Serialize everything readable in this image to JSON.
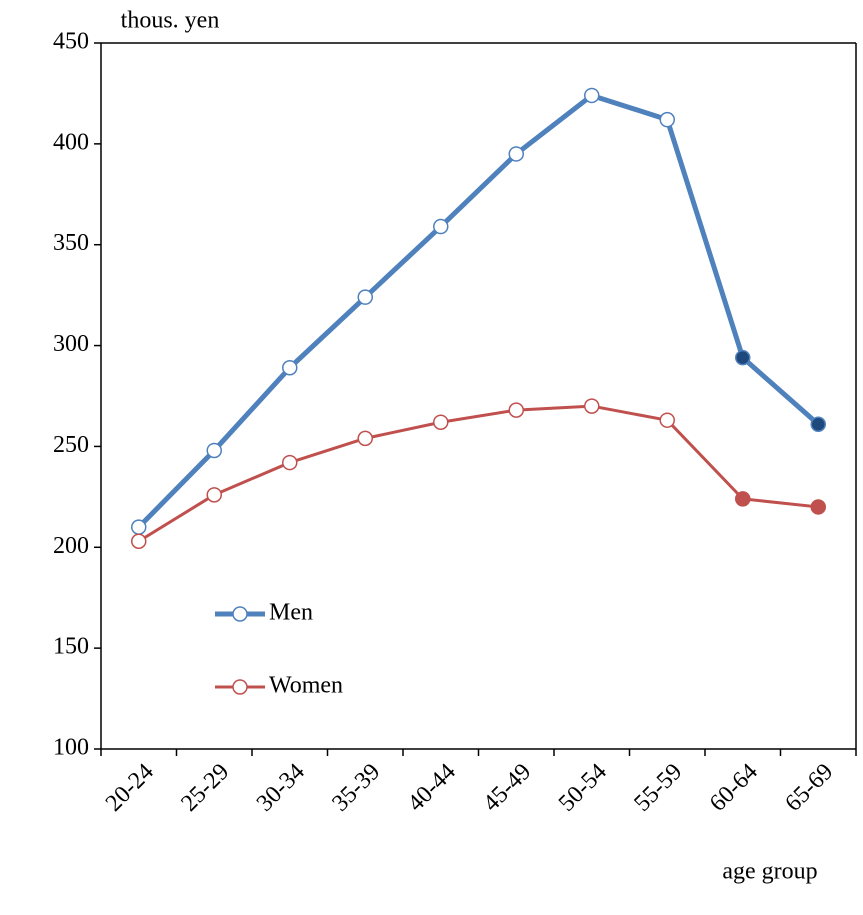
{
  "chart_data": {
    "type": "line",
    "y_label": "thous. yen",
    "x_label": "age group",
    "categories": [
      "20-24",
      "25-29",
      "30-34",
      "35-39",
      "40-44",
      "45-49",
      "50-54",
      "55-59",
      "60-64",
      "65-69"
    ],
    "series": [
      {
        "name": "Men",
        "color": "#4f81bd",
        "marker_fill": "#1f497d",
        "values": [
          210,
          248,
          289,
          324,
          359,
          395,
          424,
          412,
          294,
          261
        ]
      },
      {
        "name": "Women",
        "color": "#c0504d",
        "marker_fill": "#c0504d",
        "values": [
          203,
          226,
          242,
          254,
          262,
          268,
          270,
          263,
          224,
          220
        ]
      }
    ],
    "ylim": [
      100,
      450
    ],
    "yticks": [
      100,
      150,
      200,
      250,
      300,
      350,
      400,
      450
    ],
    "grid": false,
    "legend": "lower left"
  }
}
